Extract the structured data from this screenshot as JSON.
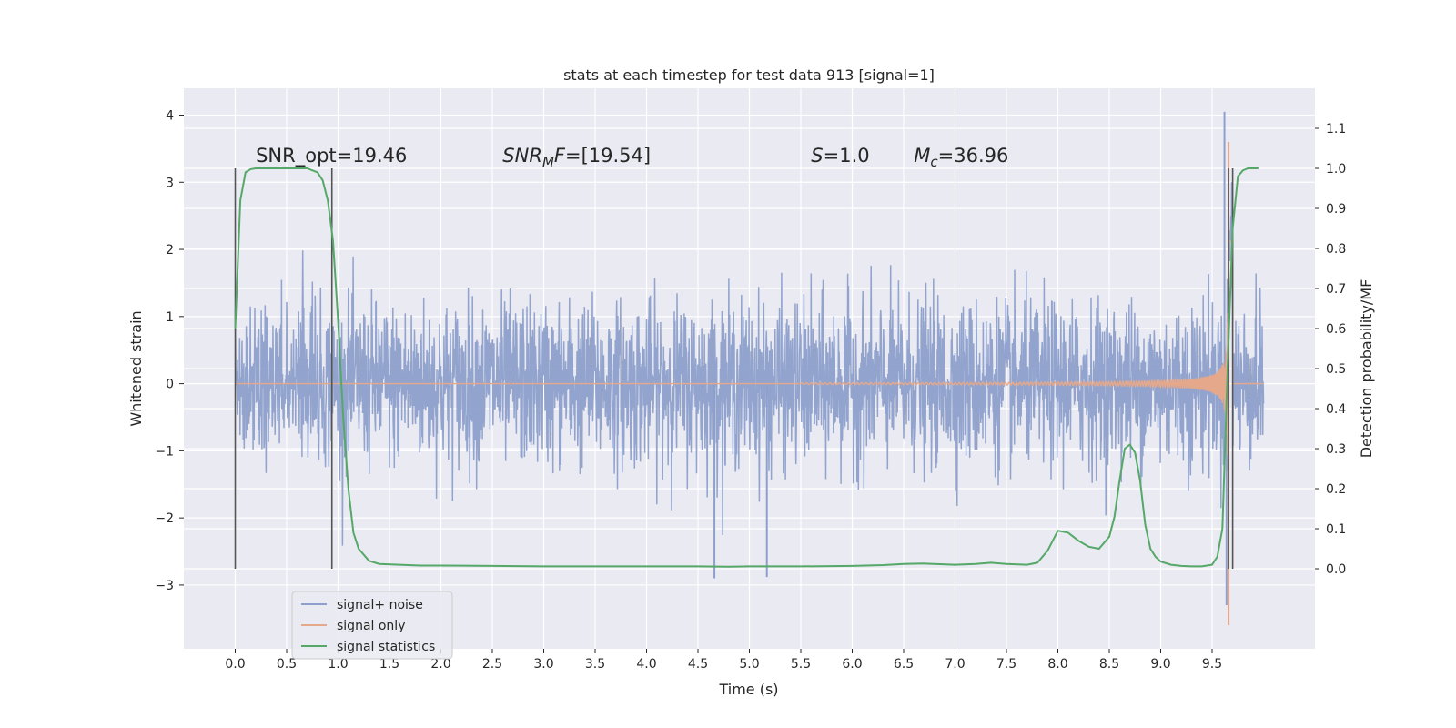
{
  "chart_data": {
    "type": "line",
    "title": "stats at each timestep for test data 913 [signal=1]",
    "xlabel": "Time (s)",
    "ylabel": "Whitened strain",
    "y2label": "Detection probability/MF",
    "xlim": [
      -0.5,
      10.5
    ],
    "ylim": [
      -3.95,
      4.4
    ],
    "y2lim": [
      -0.2,
      1.2
    ],
    "x_ticks": [
      "0.0",
      "0.5",
      "1.0",
      "1.5",
      "2.0",
      "2.5",
      "3.0",
      "3.5",
      "4.0",
      "4.5",
      "5.0",
      "5.5",
      "6.0",
      "6.5",
      "7.0",
      "7.5",
      "8.0",
      "8.5",
      "9.0",
      "9.5"
    ],
    "x_tick_values": [
      0,
      0.5,
      1,
      1.5,
      2,
      2.5,
      3,
      3.5,
      4,
      4.5,
      5,
      5.5,
      6,
      6.5,
      7,
      7.5,
      8,
      8.5,
      9,
      9.5
    ],
    "y_ticks": [
      "−3",
      "−2",
      "−1",
      "0",
      "1",
      "2",
      "3",
      "4"
    ],
    "y_tick_values": [
      -3,
      -2,
      -1,
      0,
      1,
      2,
      3,
      4
    ],
    "y2_ticks": [
      "0.0",
      "0.1",
      "0.2",
      "0.3",
      "0.4",
      "0.5",
      "0.6",
      "0.7",
      "0.8",
      "0.9",
      "1.0",
      "1.1"
    ],
    "y2_tick_values": [
      0,
      0.1,
      0.2,
      0.3,
      0.4,
      0.5,
      0.6,
      0.7,
      0.8,
      0.9,
      1.0,
      1.1
    ],
    "grid": true,
    "legend_position": "lower-left",
    "annotations": [
      {
        "text": "SNR_opt=19.46",
        "x": 0.2,
        "y": 3.3
      },
      {
        "text": "SNR_MF=[19.54]",
        "x": 2.6,
        "y": 3.3
      },
      {
        "text": "S=1.0",
        "x": 5.6,
        "y": 3.3
      },
      {
        "text": "M_c=36.96",
        "x": 6.6,
        "y": 3.3
      }
    ],
    "vertical_markers_x": [
      0.0,
      0.94,
      9.66,
      9.7
    ],
    "series": [
      {
        "name": "signal+ noise",
        "color": "#8da0cb",
        "axis": "left",
        "duration": 10.0,
        "noise_sigma": 0.6,
        "notable_peaks": [
          {
            "x": 9.62,
            "y": 4.05
          },
          {
            "x": 9.64,
            "y": -3.3
          },
          {
            "x": 4.66,
            "y": -2.9
          },
          {
            "x": 5.17,
            "y": -2.88
          }
        ]
      },
      {
        "name": "signal only",
        "color": "#e5a88a",
        "axis": "left",
        "chirp_start": 5.5,
        "merger_x": 9.66,
        "max_amplitude": 3.6,
        "min_amplitude": -3.6
      },
      {
        "name": "signal statistics",
        "color": "#55a868",
        "axis": "right",
        "x": [
          0.0,
          0.05,
          0.1,
          0.15,
          0.2,
          0.3,
          0.4,
          0.5,
          0.6,
          0.7,
          0.8,
          0.85,
          0.9,
          0.95,
          1.0,
          1.05,
          1.1,
          1.15,
          1.2,
          1.3,
          1.4,
          1.6,
          1.8,
          2.0,
          2.5,
          3.0,
          3.5,
          4.0,
          4.5,
          4.8,
          5.0,
          5.5,
          6.0,
          6.3,
          6.5,
          6.7,
          7.0,
          7.2,
          7.35,
          7.5,
          7.7,
          7.8,
          7.9,
          8.0,
          8.1,
          8.2,
          8.3,
          8.4,
          8.5,
          8.55,
          8.6,
          8.65,
          8.7,
          8.75,
          8.8,
          8.85,
          8.9,
          8.95,
          9.0,
          9.1,
          9.2,
          9.3,
          9.4,
          9.5,
          9.55,
          9.6,
          9.65,
          9.7,
          9.75,
          9.8,
          9.85,
          9.9,
          9.95
        ],
        "y": [
          0.6,
          0.92,
          0.99,
          0.998,
          1.0,
          1.0,
          1.0,
          1.0,
          1.0,
          1.0,
          0.99,
          0.97,
          0.92,
          0.82,
          0.62,
          0.38,
          0.2,
          0.09,
          0.05,
          0.02,
          0.012,
          0.01,
          0.008,
          0.008,
          0.007,
          0.006,
          0.006,
          0.006,
          0.006,
          0.005,
          0.006,
          0.006,
          0.007,
          0.009,
          0.012,
          0.013,
          0.01,
          0.012,
          0.015,
          0.012,
          0.01,
          0.015,
          0.045,
          0.095,
          0.09,
          0.07,
          0.055,
          0.05,
          0.08,
          0.13,
          0.22,
          0.3,
          0.31,
          0.29,
          0.22,
          0.11,
          0.05,
          0.03,
          0.018,
          0.01,
          0.007,
          0.006,
          0.006,
          0.01,
          0.03,
          0.1,
          0.5,
          0.85,
          0.98,
          0.995,
          1.0,
          1.0,
          1.0
        ]
      }
    ]
  }
}
